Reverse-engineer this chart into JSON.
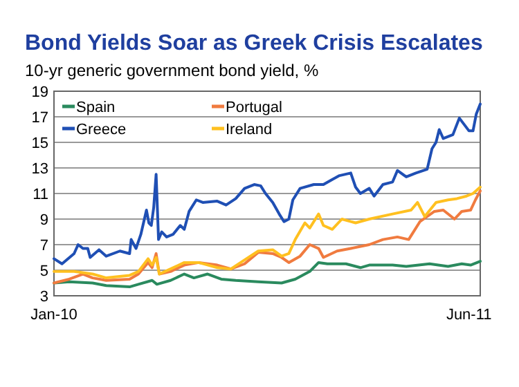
{
  "chart_data": {
    "type": "line",
    "title": "Bond Yields Soar as Greek Crisis Escalates",
    "subtitle": "10-yr generic government bond yield, %",
    "xlim": [
      "2010-01-01",
      "2011-06-15"
    ],
    "xticks": [
      {
        "value": "2010-01-01",
        "label": "Jan-10"
      },
      {
        "value": "2011-06-01",
        "label": "Jun-11"
      }
    ],
    "ylim": [
      3,
      19
    ],
    "yticks": [
      3,
      5,
      7,
      9,
      11,
      13,
      15,
      17,
      19
    ],
    "grid": "y",
    "legend": "top left",
    "marker": "none",
    "line_style": "solid",
    "series": [
      {
        "name": "Spain",
        "color": "#2a8a5e",
        "x": [
          "2010-01-01",
          "2010-01-20",
          "2010-02-18",
          "2010-03-07",
          "2010-04-05",
          "2010-04-16",
          "2010-05-03",
          "2010-05-09",
          "2010-05-26",
          "2010-06-12",
          "2010-06-24",
          "2010-07-11",
          "2010-07-28",
          "2010-08-15",
          "2010-09-12",
          "2010-10-11",
          "2010-10-28",
          "2010-11-15",
          "2010-11-26",
          "2010-12-07",
          "2010-12-30",
          "2011-01-17",
          "2011-01-28",
          "2011-02-26",
          "2011-03-15",
          "2011-04-13",
          "2011-05-06",
          "2011-05-23",
          "2011-06-03",
          "2011-06-15"
        ],
        "values": [
          4.0,
          4.1,
          4.0,
          3.8,
          3.7,
          3.9,
          4.2,
          3.9,
          4.2,
          4.7,
          4.4,
          4.7,
          4.3,
          4.2,
          4.1,
          4.0,
          4.3,
          4.9,
          5.6,
          5.5,
          5.5,
          5.2,
          5.4,
          5.4,
          5.3,
          5.5,
          5.3,
          5.5,
          5.4,
          5.7
        ]
      },
      {
        "name": "Portugal",
        "color": "#f07b3f",
        "x": [
          "2010-01-01",
          "2010-01-20",
          "2010-02-06",
          "2010-02-18",
          "2010-03-07",
          "2010-04-05",
          "2010-04-16",
          "2010-04-28",
          "2010-05-03",
          "2010-05-08",
          "2010-05-12",
          "2010-05-26",
          "2010-06-12",
          "2010-06-30",
          "2010-07-23",
          "2010-08-09",
          "2010-08-26",
          "2010-09-12",
          "2010-09-30",
          "2010-10-11",
          "2010-10-20",
          "2010-11-03",
          "2010-11-15",
          "2010-11-26",
          "2010-12-02",
          "2010-12-19",
          "2011-01-05",
          "2011-01-28",
          "2011-02-14",
          "2011-03-04",
          "2011-03-18",
          "2011-04-01",
          "2011-04-19",
          "2011-04-30",
          "2011-05-14",
          "2011-05-23",
          "2011-06-03",
          "2011-06-09",
          "2011-06-15"
        ],
        "values": [
          4.0,
          4.3,
          4.7,
          4.4,
          4.2,
          4.3,
          4.7,
          5.6,
          5.2,
          6.3,
          4.7,
          4.9,
          5.4,
          5.6,
          5.4,
          5.1,
          5.5,
          6.4,
          6.3,
          6.0,
          5.6,
          6.1,
          7.0,
          6.7,
          6.0,
          6.5,
          6.7,
          7.0,
          7.4,
          7.6,
          7.4,
          8.8,
          9.6,
          9.7,
          9.0,
          9.6,
          9.7,
          10.5,
          11.2
        ]
      },
      {
        "name": "Greece",
        "color": "#1f4fb4",
        "x": [
          "2010-01-01",
          "2010-01-11",
          "2010-01-26",
          "2010-01-31",
          "2010-02-06",
          "2010-02-12",
          "2010-02-15",
          "2010-02-26",
          "2010-03-07",
          "2010-03-24",
          "2010-04-05",
          "2010-04-07",
          "2010-04-13",
          "2010-04-19",
          "2010-04-26",
          "2010-04-29",
          "2010-05-02",
          "2010-05-05",
          "2010-05-08",
          "2010-05-11",
          "2010-05-15",
          "2010-05-21",
          "2010-05-29",
          "2010-06-07",
          "2010-06-12",
          "2010-06-18",
          "2010-06-27",
          "2010-07-05",
          "2010-07-23",
          "2010-08-03",
          "2010-08-15",
          "2010-08-26",
          "2010-09-07",
          "2010-09-15",
          "2010-09-21",
          "2010-09-30",
          "2010-10-08",
          "2010-10-14",
          "2010-10-20",
          "2010-10-25",
          "2010-11-03",
          "2010-11-20",
          "2010-12-02",
          "2010-12-13",
          "2010-12-22",
          "2011-01-05",
          "2011-01-11",
          "2011-01-17",
          "2011-01-28",
          "2011-02-03",
          "2011-02-14",
          "2011-02-26",
          "2011-03-04",
          "2011-03-15",
          "2011-03-27",
          "2011-04-10",
          "2011-04-16",
          "2011-04-21",
          "2011-04-25",
          "2011-04-30",
          "2011-05-12",
          "2011-05-20",
          "2011-05-26",
          "2011-06-01",
          "2011-06-06",
          "2011-06-10",
          "2011-06-15"
        ],
        "values": [
          5.9,
          5.5,
          6.3,
          7.0,
          6.7,
          6.7,
          6.0,
          6.6,
          6.1,
          6.5,
          6.3,
          7.4,
          6.7,
          7.8,
          9.7,
          8.7,
          8.5,
          9.9,
          12.5,
          7.4,
          8.0,
          7.6,
          7.8,
          8.5,
          8.2,
          9.6,
          10.5,
          10.3,
          10.4,
          10.1,
          10.6,
          11.4,
          11.7,
          11.6,
          11.0,
          10.3,
          9.4,
          8.8,
          9.0,
          10.5,
          11.4,
          11.7,
          11.7,
          12.1,
          12.4,
          12.6,
          11.5,
          11.0,
          11.4,
          10.8,
          11.7,
          11.9,
          12.8,
          12.3,
          12.6,
          12.9,
          14.5,
          15.0,
          16.0,
          15.3,
          15.6,
          16.9,
          16.4,
          15.9,
          15.9,
          17.2,
          18.0
        ]
      },
      {
        "name": "Ireland",
        "color": "#ffc020",
        "x": [
          "2010-01-01",
          "2010-01-26",
          "2010-02-18",
          "2010-03-07",
          "2010-04-05",
          "2010-04-16",
          "2010-04-28",
          "2010-05-03",
          "2010-05-08",
          "2010-05-12",
          "2010-05-26",
          "2010-06-12",
          "2010-06-30",
          "2010-07-23",
          "2010-08-09",
          "2010-08-26",
          "2010-09-12",
          "2010-09-30",
          "2010-10-11",
          "2010-10-20",
          "2010-10-28",
          "2010-11-09",
          "2010-11-15",
          "2010-11-26",
          "2010-12-02",
          "2010-12-13",
          "2010-12-25",
          "2011-01-11",
          "2011-01-28",
          "2011-02-26",
          "2011-03-21",
          "2011-03-29",
          "2011-04-07",
          "2011-04-21",
          "2011-05-06",
          "2011-05-17",
          "2011-05-29",
          "2011-06-06",
          "2011-06-15"
        ],
        "values": [
          4.9,
          4.9,
          4.7,
          4.4,
          4.6,
          4.9,
          5.9,
          5.4,
          6.0,
          4.7,
          5.1,
          5.6,
          5.6,
          5.2,
          5.1,
          5.8,
          6.5,
          6.6,
          6.1,
          6.3,
          7.4,
          8.7,
          8.3,
          9.4,
          8.5,
          8.2,
          9.0,
          8.7,
          9.0,
          9.4,
          9.7,
          10.3,
          9.2,
          10.3,
          10.5,
          10.6,
          10.8,
          11.0,
          11.5
        ]
      }
    ]
  }
}
